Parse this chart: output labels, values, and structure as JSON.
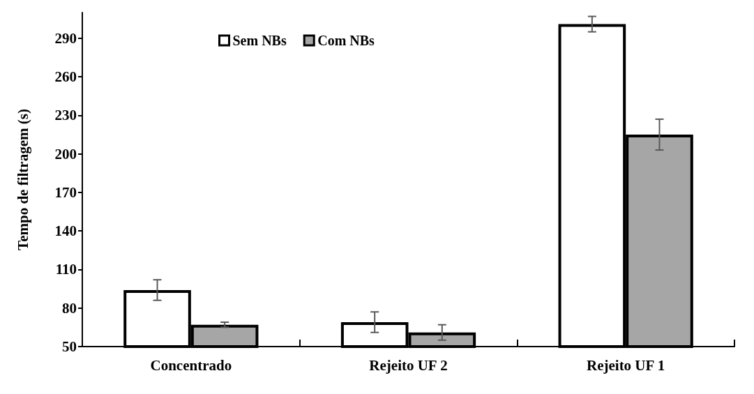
{
  "chart_data": {
    "type": "bar",
    "ylabel": "Tempo de filtragem (s)",
    "categories": [
      "Concentrado",
      "Rejeito UF 2",
      "Rejeito UF 1"
    ],
    "series": [
      {
        "name": "Sem NBs",
        "color": "#ffffff",
        "values": [
          94,
          69,
          301
        ],
        "errors": [
          8,
          8,
          6
        ]
      },
      {
        "name": "Com NBs",
        "color": "#a6a6a6",
        "values": [
          67,
          61,
          215
        ],
        "errors": [
          2,
          6,
          12
        ]
      }
    ],
    "ylim": [
      50,
      310
    ],
    "yticks": [
      50,
      80,
      110,
      140,
      170,
      200,
      230,
      260,
      290
    ],
    "grid": false,
    "legend": "top"
  }
}
